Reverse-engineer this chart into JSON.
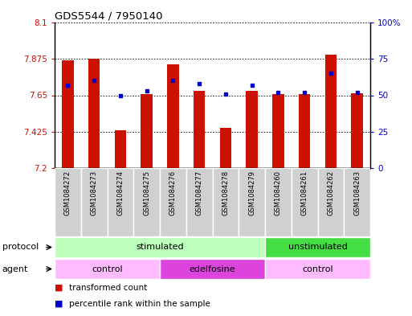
{
  "title": "GDS5544 / 7950140",
  "samples": [
    "GSM1084272",
    "GSM1084273",
    "GSM1084274",
    "GSM1084275",
    "GSM1084276",
    "GSM1084277",
    "GSM1084278",
    "GSM1084279",
    "GSM1084260",
    "GSM1084261",
    "GSM1084262",
    "GSM1084263"
  ],
  "bar_values": [
    7.865,
    7.875,
    7.435,
    7.655,
    7.84,
    7.675,
    7.45,
    7.675,
    7.655,
    7.655,
    7.9,
    7.66
  ],
  "percentile_values": [
    57,
    60,
    50,
    53,
    60,
    58,
    51,
    57,
    52,
    52,
    65,
    52
  ],
  "y_min": 7.2,
  "y_max": 8.1,
  "y_ticks": [
    7.2,
    7.425,
    7.65,
    7.875,
    8.1
  ],
  "y_tick_labels": [
    "7.2",
    "7.425",
    "7.65",
    "7.875",
    "8.1"
  ],
  "y2_ticks": [
    0,
    25,
    50,
    75,
    100
  ],
  "y2_tick_labels": [
    "0",
    "25",
    "50",
    "75",
    "100%"
  ],
  "bar_color": "#CC1100",
  "dot_color": "#0000CC",
  "grid_color": "#000000",
  "bg_color": "#FFFFFF",
  "protocol_stimulated": [
    0,
    7
  ],
  "protocol_unstimulated": [
    8,
    11
  ],
  "agent_control1": [
    0,
    3
  ],
  "agent_edelfosine": [
    4,
    7
  ],
  "agent_control2": [
    8,
    11
  ],
  "protocol_stim_color": "#BBFFBB",
  "protocol_unstim_color": "#44DD44",
  "agent_ctrl_color": "#FFBBFF",
  "agent_edef_color": "#DD44DD",
  "xlabel_color": "#CC1100",
  "ylabel2_color": "#0000CC",
  "bar_width": 0.45
}
